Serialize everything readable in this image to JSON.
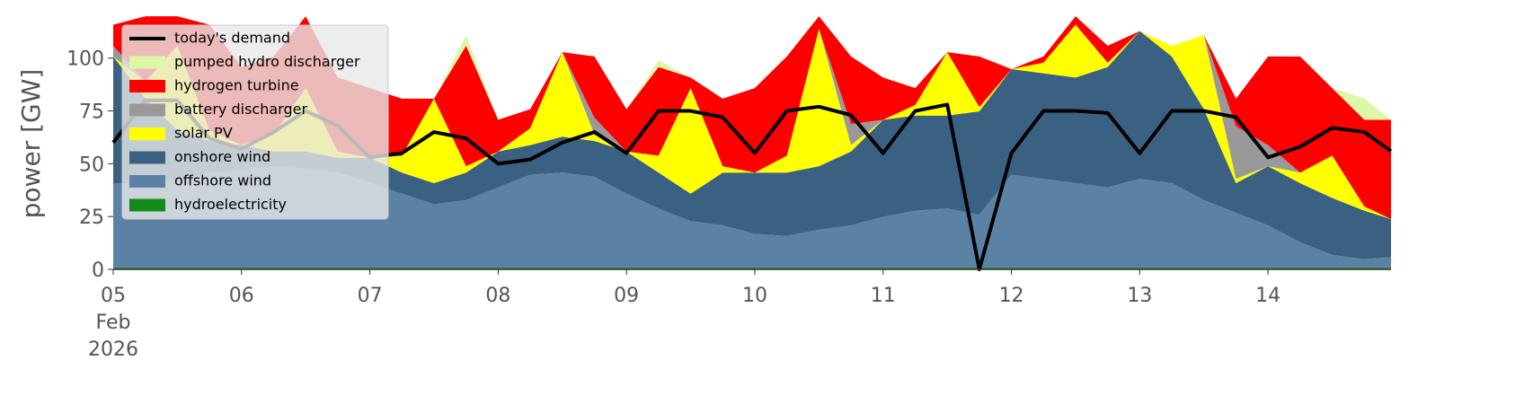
{
  "chart_data": {
    "type": "stacked-area",
    "y_label": "power [GW]",
    "x": [
      "2026-02-05T00:00",
      "2026-02-05T06:00",
      "2026-02-05T12:00",
      "2026-02-05T18:00",
      "2026-02-06T00:00",
      "2026-02-06T06:00",
      "2026-02-06T12:00",
      "2026-02-06T18:00",
      "2026-02-07T00:00",
      "2026-02-07T06:00",
      "2026-02-07T12:00",
      "2026-02-07T18:00",
      "2026-02-08T00:00",
      "2026-02-08T06:00",
      "2026-02-08T12:00",
      "2026-02-08T18:00",
      "2026-02-09T00:00",
      "2026-02-09T06:00",
      "2026-02-09T12:00",
      "2026-02-09T18:00",
      "2026-02-10T00:00",
      "2026-02-10T06:00",
      "2026-02-10T12:00",
      "2026-02-10T18:00",
      "2026-02-11T00:00",
      "2026-02-11T06:00",
      "2026-02-11T12:00",
      "2026-02-11T18:00",
      "2026-02-12T00:00",
      "2026-02-12T06:00",
      "2026-02-12T12:00",
      "2026-02-12T18:00",
      "2026-02-13T00:00",
      "2026-02-13T06:00",
      "2026-02-13T12:00",
      "2026-02-13T18:00",
      "2026-02-14T00:00",
      "2026-02-14T06:00",
      "2026-02-14T12:00",
      "2026-02-14T18:00",
      "2026-02-14T23:00"
    ],
    "xlim": [
      "2026-02-05T00:00",
      "2026-02-14T23:00"
    ],
    "xticks": [
      {
        "value": "2026-02-05T00:00",
        "label": "05\nFeb\n2026"
      },
      {
        "value": "2026-02-06T00:00",
        "label": "06"
      },
      {
        "value": "2026-02-07T00:00",
        "label": "07"
      },
      {
        "value": "2026-02-08T00:00",
        "label": "08"
      },
      {
        "value": "2026-02-09T00:00",
        "label": "09"
      },
      {
        "value": "2026-02-10T00:00",
        "label": "10"
      },
      {
        "value": "2026-02-11T00:00",
        "label": "11"
      },
      {
        "value": "2026-02-12T00:00",
        "label": "12"
      },
      {
        "value": "2026-02-13T00:00",
        "label": "13"
      },
      {
        "value": "2026-02-14T00:00",
        "label": "14"
      }
    ],
    "ylim": [
      0,
      119
    ],
    "yticks": [
      0,
      25,
      50,
      75,
      100
    ],
    "legend": "upper left",
    "series": [
      {
        "name": "today's demand",
        "kind": "line",
        "color": "#000000",
        "values": [
          60,
          80,
          80,
          62,
          57,
          65,
          75,
          68,
          53,
          55,
          65,
          62,
          50,
          52,
          60,
          65,
          55,
          75,
          75,
          72,
          55,
          75,
          77,
          73,
          55,
          75,
          78,
          0,
          55,
          75,
          75,
          74,
          55,
          75,
          75,
          72,
          53,
          58,
          67,
          65,
          56
        ]
      },
      {
        "name": "pumped hydro discharger",
        "kind": "area",
        "color": "#dcf7a6",
        "values": [
          0,
          0,
          0,
          0,
          0,
          0,
          0,
          0,
          0,
          0,
          0,
          5,
          0,
          0,
          0,
          0,
          0,
          3,
          0,
          0,
          0,
          0,
          0,
          0,
          0,
          0,
          0,
          0,
          0,
          0,
          0,
          0,
          0,
          0,
          0,
          0,
          0,
          0,
          0,
          10,
          0
        ]
      },
      {
        "name": "hydrogen turbine",
        "kind": "area",
        "color": "#ff0000",
        "values": [
          10,
          31,
          14,
          50,
          37,
          37,
          34,
          35,
          33,
          27,
          0,
          57,
          15,
          9,
          0,
          29,
          20,
          42,
          5,
          32,
          40,
          47,
          6,
          32,
          20,
          8,
          0,
          24,
          0,
          3,
          4,
          8,
          0,
          0,
          0,
          13,
          42,
          55,
          32,
          41,
          47
        ]
      },
      {
        "name": "battery discharger",
        "kind": "area",
        "color": "#999999",
        "values": [
          5,
          0,
          0,
          0,
          0,
          0,
          0,
          0,
          0,
          0,
          0,
          0,
          0,
          0,
          0,
          8,
          0,
          0,
          0,
          0,
          0,
          0,
          0,
          10,
          0,
          0,
          0,
          0,
          0,
          0,
          0,
          0,
          0,
          0,
          0,
          25,
          10,
          0,
          0,
          0,
          0
        ]
      },
      {
        "name": "solar PV",
        "kind": "area",
        "color": "#ffff00",
        "values": [
          0,
          8,
          40,
          5,
          0,
          8,
          30,
          3,
          0,
          8,
          40,
          3,
          0,
          8,
          40,
          3,
          0,
          8,
          50,
          3,
          0,
          8,
          65,
          3,
          0,
          5,
          30,
          2,
          0,
          5,
          25,
          2,
          0,
          5,
          35,
          2,
          0,
          5,
          20,
          2,
          0
        ]
      },
      {
        "name": "onshore wind",
        "kind": "area",
        "color": "#3b6182",
        "values": [
          60,
          40,
          23,
          15,
          12,
          7,
          8,
          7,
          12,
          10,
          10,
          13,
          17,
          14,
          17,
          17,
          20,
          17,
          13,
          25,
          29,
          30,
          30,
          35,
          46,
          45,
          44,
          49,
          50,
          50,
          50,
          57,
          70,
          60,
          43,
          14,
          28,
          28,
          27,
          23,
          18
        ]
      },
      {
        "name": "offshore wind",
        "kind": "area",
        "color": "#5b82a5",
        "values": [
          40,
          40,
          42,
          45,
          46,
          48,
          47,
          45,
          40,
          35,
          30,
          32,
          38,
          44,
          45,
          43,
          35,
          28,
          22,
          20,
          16,
          15,
          18,
          20,
          24,
          27,
          28,
          25,
          44,
          42,
          40,
          38,
          42,
          40,
          32,
          26,
          20,
          12,
          6,
          4,
          5
        ]
      },
      {
        "name": "hydroelectricity",
        "kind": "area",
        "color": "#138a1a",
        "values": [
          0.8,
          0.8,
          0.8,
          0.8,
          0.8,
          0.8,
          0.8,
          0.8,
          0.8,
          0.8,
          0.8,
          0.8,
          0.8,
          0.8,
          0.8,
          0.8,
          0.8,
          0.8,
          0.8,
          0.8,
          0.8,
          0.8,
          0.8,
          0.8,
          0.8,
          0.8,
          0.8,
          0.8,
          0.8,
          0.8,
          0.8,
          0.8,
          0.8,
          0.8,
          0.8,
          0.8,
          0.8,
          0.8,
          0.8,
          0.8,
          0.8
        ]
      }
    ]
  }
}
